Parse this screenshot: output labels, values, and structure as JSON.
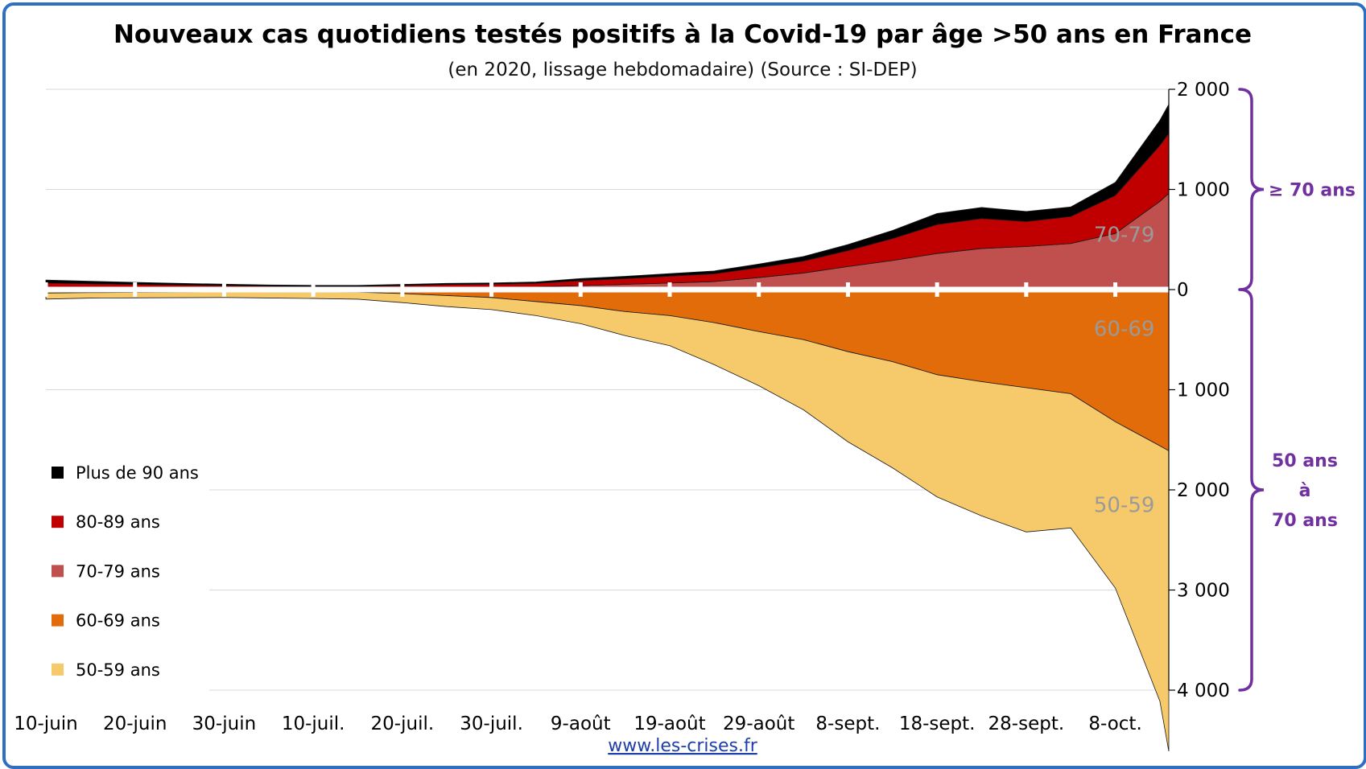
{
  "chart_data": {
    "type": "area",
    "title": "Nouveaux cas quotidiens testés positifs à la Covid-19 par âge >50 ans en France",
    "subtitle": "(en 2020, lissage hebdomadaire) (Source : SI-DEP)",
    "x_labels": [
      "10-juin",
      "20-juin",
      "30-juin",
      "10-juil.",
      "20-juil.",
      "30-juil.",
      "9-août",
      "19-août",
      "29-août",
      "8-sept.",
      "18-sept.",
      "28-sept.",
      "8-oct."
    ],
    "x_label_days": [
      0,
      10,
      20,
      30,
      40,
      50,
      60,
      70,
      80,
      90,
      100,
      110,
      120
    ],
    "y_tick_labels": [
      "2 000",
      "1 000",
      "0",
      "1 000",
      "2 000",
      "3 000",
      "4 000"
    ],
    "y_tick_values": [
      2000,
      1000,
      0,
      -1000,
      -2000,
      -3000,
      -4000
    ],
    "ylim": [
      -4000,
      2000
    ],
    "grid": true,
    "legend_position": "left",
    "legend": [
      "Plus de 90 ans",
      "80-89 ans",
      "70-79 ans",
      "60-69 ans",
      "50-59 ans"
    ],
    "colors": {
      "plus90": "#000000",
      "a80_89": "#c00000",
      "a70_79": "#c0504d",
      "a60_69": "#e36c0a",
      "a50_59": "#f6c96b",
      "bracket": "#7030a0",
      "frame": "#2f6fc2"
    },
    "series_above": [
      {
        "key": "a70_79",
        "name": "70-79 ans",
        "x": [
          0,
          5,
          10,
          15,
          20,
          25,
          30,
          35,
          40,
          45,
          50,
          55,
          60,
          65,
          70,
          75,
          80,
          85,
          90,
          95,
          100,
          105,
          110,
          115,
          120,
          125,
          126
        ],
        "values": [
          25,
          20,
          18,
          16,
          14,
          12,
          12,
          12,
          16,
          20,
          22,
          26,
          40,
          52,
          65,
          80,
          120,
          165,
          230,
          290,
          360,
          410,
          430,
          460,
          560,
          880,
          960
        ]
      },
      {
        "key": "a80_89",
        "name": "80-89 ans",
        "x": [
          0,
          5,
          10,
          15,
          20,
          25,
          30,
          35,
          40,
          45,
          50,
          55,
          60,
          65,
          70,
          75,
          80,
          85,
          90,
          95,
          100,
          105,
          110,
          115,
          120,
          125,
          126
        ],
        "values": [
          40,
          38,
          34,
          30,
          26,
          22,
          20,
          20,
          24,
          30,
          32,
          36,
          50,
          58,
          70,
          78,
          100,
          120,
          160,
          220,
          290,
          300,
          250,
          270,
          380,
          560,
          600
        ]
      },
      {
        "key": "plus90",
        "name": "Plus de 90 ans",
        "x": [
          0,
          5,
          10,
          15,
          20,
          25,
          30,
          35,
          40,
          45,
          50,
          55,
          60,
          65,
          70,
          75,
          80,
          85,
          90,
          95,
          100,
          105,
          110,
          115,
          120,
          125,
          126
        ],
        "values": [
          30,
          25,
          20,
          16,
          14,
          12,
          10,
          10,
          12,
          12,
          12,
          14,
          20,
          22,
          24,
          28,
          35,
          45,
          60,
          80,
          110,
          110,
          100,
          95,
          130,
          250,
          290
        ]
      }
    ],
    "series_below": [
      {
        "key": "a60_69",
        "name": "60-69 ans",
        "x": [
          0,
          5,
          10,
          15,
          20,
          25,
          30,
          35,
          40,
          45,
          50,
          55,
          60,
          65,
          70,
          75,
          80,
          85,
          90,
          95,
          100,
          105,
          110,
          115,
          120,
          125,
          126
        ],
        "values": [
          35,
          30,
          28,
          26,
          24,
          24,
          24,
          26,
          40,
          60,
          80,
          120,
          160,
          220,
          260,
          330,
          420,
          500,
          620,
          720,
          850,
          920,
          980,
          1040,
          1320,
          1560,
          1610
        ]
      },
      {
        "key": "a50_59",
        "name": "50-59 ans",
        "x": [
          0,
          5,
          10,
          15,
          20,
          25,
          30,
          35,
          40,
          45,
          50,
          55,
          60,
          65,
          70,
          75,
          80,
          85,
          90,
          95,
          100,
          105,
          110,
          115,
          120,
          125,
          126
        ],
        "values": [
          60,
          55,
          55,
          55,
          55,
          60,
          65,
          70,
          90,
          110,
          120,
          140,
          180,
          240,
          300,
          420,
          540,
          700,
          900,
          1060,
          1220,
          1340,
          1440,
          1340,
          1660,
          2550,
          3000
        ]
      }
    ],
    "area_labels": [
      {
        "key": "a70_79",
        "text": "70-79",
        "x": 121,
        "y": 550
      },
      {
        "key": "a60_69",
        "text": "60-69",
        "x": 121,
        "y": -390
      },
      {
        "key": "a50_59",
        "text": "50-59",
        "x": 121,
        "y": -2150
      }
    ],
    "groups": [
      {
        "text_lines": [
          "≥ 70 ans"
        ],
        "from": 2000,
        "to": 0
      },
      {
        "text_lines": [
          "50 ans",
          "à",
          "70 ans"
        ],
        "from": 0,
        "to": -4000
      }
    ],
    "source": "www.les-crises.fr"
  }
}
